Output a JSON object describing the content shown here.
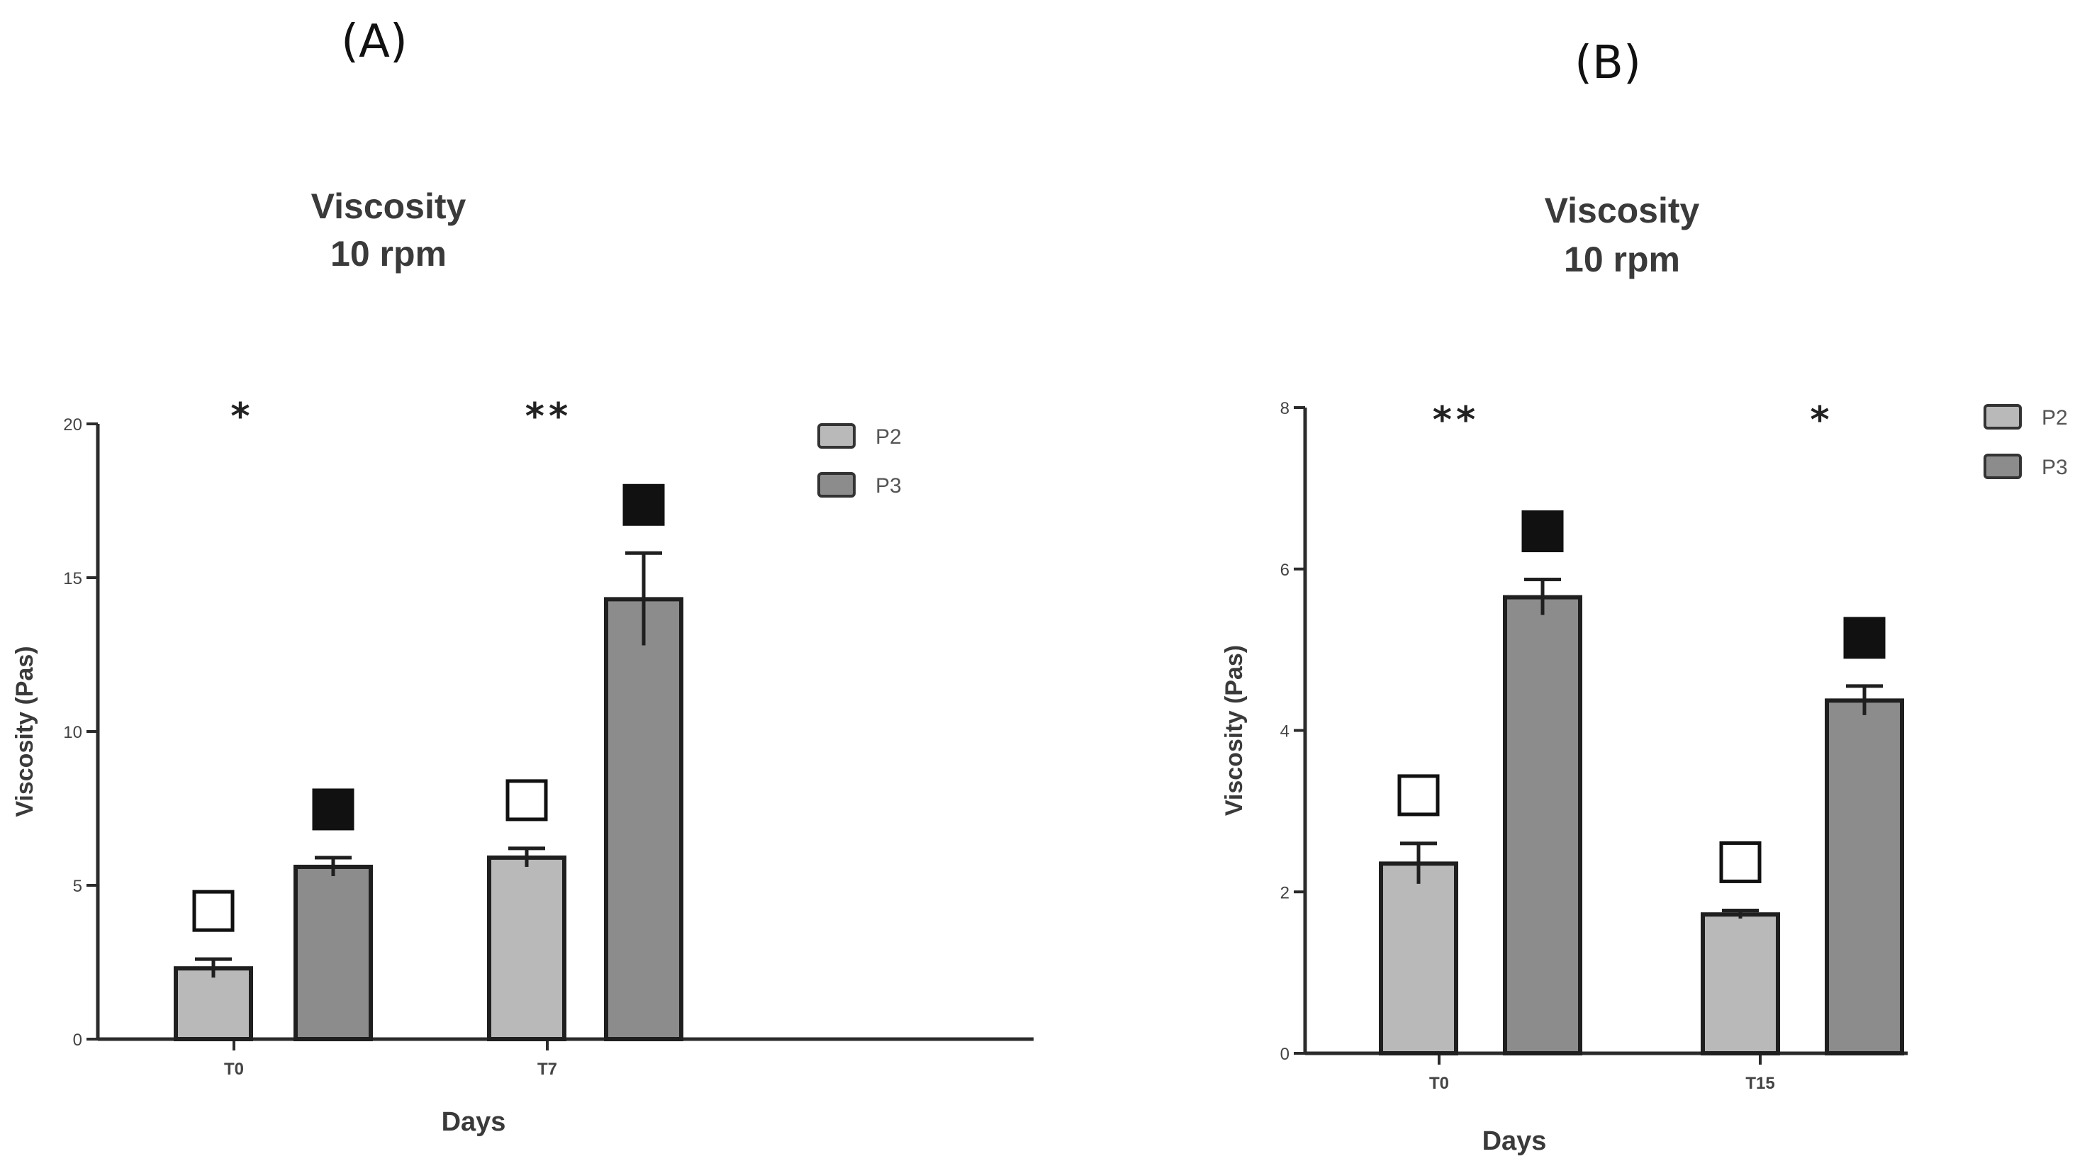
{
  "colors": {
    "P2": "#b9b9b9",
    "P3": "#8c8c8c"
  },
  "chart_data": [
    {
      "panel_label": "(A)",
      "type": "bar",
      "title_line1": "Viscosity",
      "title_line2": "10 rpm",
      "xlabel": "Days",
      "ylabel": "Viscosity (Pas)",
      "ylim": [
        0,
        20
      ],
      "yticks": [
        0,
        5,
        10,
        15,
        20
      ],
      "categories": [
        "T0",
        "T7"
      ],
      "legend_position": "top-right",
      "series": [
        {
          "name": "P2",
          "values": [
            2.3,
            5.9
          ],
          "errors": [
            0.3,
            0.3
          ],
          "marker": "open-square"
        },
        {
          "name": "P3",
          "values": [
            5.6,
            14.3
          ],
          "errors": [
            0.3,
            1.5
          ],
          "marker": "filled-square"
        }
      ],
      "significance": [
        "*",
        "**"
      ]
    },
    {
      "panel_label": "(B)",
      "type": "bar",
      "title_line1": "Viscosity",
      "title_line2": "10 rpm",
      "xlabel": "Days",
      "ylabel": "Viscosity (Pas)",
      "ylim": [
        0,
        8
      ],
      "yticks": [
        0,
        2,
        4,
        6,
        8
      ],
      "categories": [
        "T0",
        "T15"
      ],
      "legend_position": "top-right",
      "series": [
        {
          "name": "P2",
          "values": [
            2.35,
            1.72
          ],
          "errors": [
            0.25,
            0.05
          ],
          "marker": "open-square"
        },
        {
          "name": "P3",
          "values": [
            5.65,
            4.37
          ],
          "errors": [
            0.22,
            0.18
          ],
          "marker": "filled-square"
        }
      ],
      "significance": [
        "**",
        "*"
      ]
    }
  ]
}
